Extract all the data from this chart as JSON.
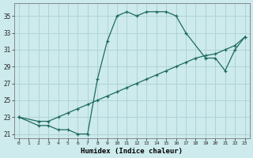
{
  "background_color": "#cdeaec",
  "grid_color": "#aed4d8",
  "line_color": "#1e6b5e",
  "marker": "+",
  "xlabel": "Humidex (Indice chaleur)",
  "ylabel_ticks": [
    21,
    23,
    25,
    27,
    29,
    31,
    33,
    35
  ],
  "xlim": [
    -0.5,
    23.5
  ],
  "ylim": [
    20.5,
    36.5
  ],
  "xticks": [
    0,
    1,
    2,
    3,
    4,
    5,
    6,
    7,
    8,
    9,
    10,
    11,
    12,
    13,
    14,
    15,
    16,
    17,
    18,
    19,
    20,
    21,
    22,
    23
  ],
  "series1_x": [
    0,
    2,
    3,
    4,
    5,
    6,
    7,
    8,
    9,
    10,
    11,
    12,
    13,
    14,
    15,
    16,
    17,
    19,
    20,
    21,
    22,
    23
  ],
  "series1_y": [
    23,
    22,
    22,
    21.5,
    21.5,
    21,
    21,
    27.5,
    32,
    35,
    35.5,
    35,
    35.5,
    35.5,
    35.5,
    35,
    33,
    30,
    30,
    28.5,
    31,
    32.5
  ],
  "series2_x": [
    0,
    2,
    3,
    4,
    5,
    6,
    7,
    8,
    9,
    10,
    11,
    12,
    13,
    14,
    15,
    16,
    17,
    18,
    19,
    20,
    21,
    22,
    23
  ],
  "series2_y": [
    23,
    22.5,
    22.5,
    23,
    23.5,
    24,
    24.5,
    25,
    25.5,
    26,
    26.5,
    27,
    27.5,
    28,
    28.5,
    29,
    29.5,
    30,
    30.3,
    30.5,
    31,
    31.5,
    32.5
  ]
}
